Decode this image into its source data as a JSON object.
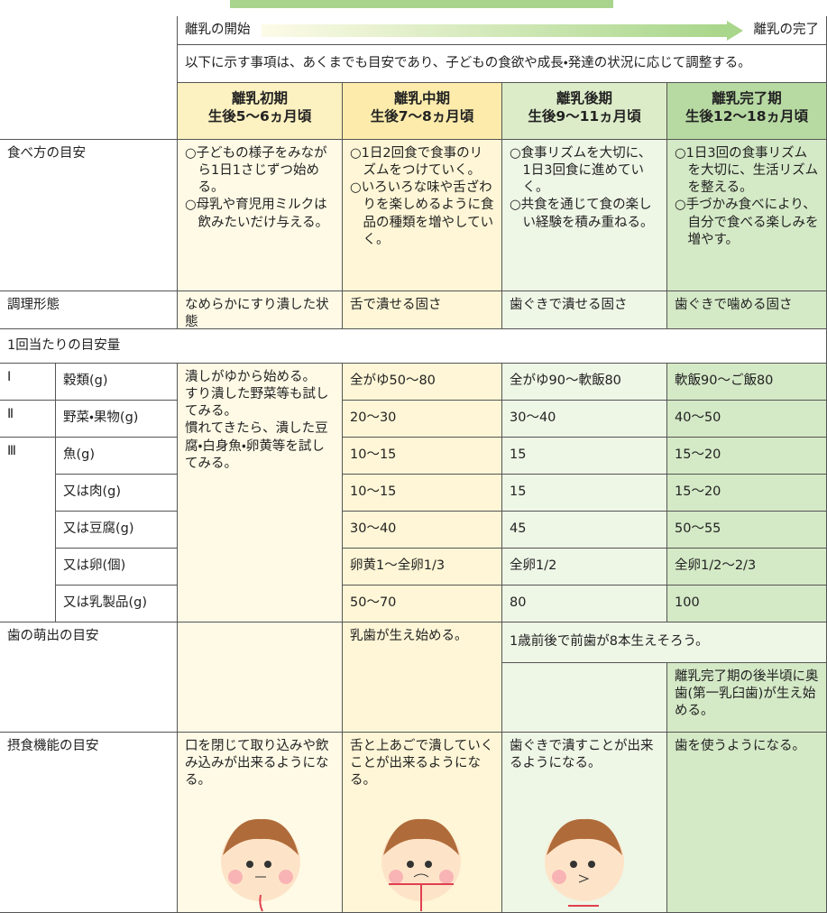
{
  "progress": {
    "start": "離乳の開始",
    "end": "離乳の完了"
  },
  "note": "以下に示す事項は、あくまでも目安であり、子どもの食欲や成長・発達の状況に応じて調整する。",
  "stages": [
    {
      "name": "離乳初期",
      "age": "生後5〜6ヵ月頃"
    },
    {
      "name": "離乳中期",
      "age": "生後7〜8ヵ月頃"
    },
    {
      "name": "離乳後期",
      "age": "生後9〜11ヵ月頃"
    },
    {
      "name": "離乳完了期",
      "age": "生後12〜18ヵ月頃"
    }
  ],
  "eating": {
    "label": "食べ方の目安",
    "cells": [
      [
        "○子どもの様子をみながら1日1さじずつ始める。",
        "○母乳や育児用ミルクは飲みたいだけ与える。"
      ],
      [
        "○1日2回食で食事のリズムをつけていく。",
        "○いろいろな味や舌ざわりを楽しめるように食品の種類を増やしていく。"
      ],
      [
        "○食事リズムを大切に、1日3回食に進めていく。",
        "○共食を通じて食の楽しい経験を積み重ねる。"
      ],
      [
        "○1日3回の食事リズムを大切に、生活リズムを整える。",
        "○手づかみ食べにより、自分で食べる楽しみを増やす。"
      ]
    ]
  },
  "cooking": {
    "label": "調理形態",
    "cells": [
      "なめらかにすり潰した状態",
      "舌で潰せる固さ",
      "歯ぐきで潰せる固さ",
      "歯ぐきで噛める固さ"
    ]
  },
  "amount": {
    "title": "1回当たりの目安量",
    "early": [
      "潰しがゆから始める。",
      "すり潰した野菜等も試してみる。",
      "慣れてきたら、潰した豆腐・白身魚・卵黄等を試してみる。"
    ],
    "items": [
      {
        "group": "Ⅰ",
        "name": "穀類(g)",
        "values": [
          "全がゆ50〜80",
          "全がゆ90〜軟飯80",
          "軟飯90〜ご飯80"
        ]
      },
      {
        "group": "Ⅱ",
        "name": "野菜・果物(g)",
        "values": [
          "20〜30",
          "30〜40",
          "40〜50"
        ]
      },
      {
        "group": "Ⅲ",
        "name": "魚(g)",
        "values": [
          "10〜15",
          "15",
          "15〜20"
        ]
      },
      {
        "name": "又は肉(g)",
        "values": [
          "10〜15",
          "15",
          "15〜20"
        ]
      },
      {
        "name": "又は豆腐(g)",
        "values": [
          "30〜40",
          "45",
          "50〜55"
        ]
      },
      {
        "name": "又は卵(個)",
        "values": [
          "卵黄1〜全卵1/3",
          "全卵1/2",
          "全卵1/2〜2/3"
        ]
      },
      {
        "name": "又は乳製品(g)",
        "values": [
          "50〜70",
          "80",
          "100"
        ]
      }
    ]
  },
  "teeth": {
    "label": "歯の萌出の目安",
    "middle": "乳歯が生え始める。",
    "late": "1歳前後で前歯が8本生えそろう。",
    "final": "離乳完了期の後半頃に奥歯(第一乳臼歯)が生え始める。"
  },
  "function": {
    "label": "摂食機能の目安",
    "cells": [
      "口を閉じて取り込みや飲み込みが出来るようになる。",
      "舌と上あごで潰していくことが出来るようになる。",
      "歯ぐきで潰すことが出来るようになる。",
      "歯を使うようになる。"
    ]
  }
}
